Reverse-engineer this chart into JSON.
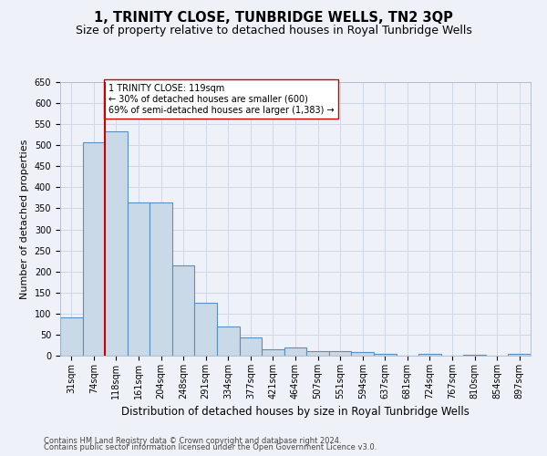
{
  "title": "1, TRINITY CLOSE, TUNBRIDGE WELLS, TN2 3QP",
  "subtitle": "Size of property relative to detached houses in Royal Tunbridge Wells",
  "xlabel": "Distribution of detached houses by size in Royal Tunbridge Wells",
  "ylabel": "Number of detached properties",
  "footnote1": "Contains HM Land Registry data © Crown copyright and database right 2024.",
  "footnote2": "Contains public sector information licensed under the Open Government Licence v3.0.",
  "bar_labels": [
    "31sqm",
    "74sqm",
    "118sqm",
    "161sqm",
    "204sqm",
    "248sqm",
    "291sqm",
    "334sqm",
    "377sqm",
    "421sqm",
    "464sqm",
    "507sqm",
    "551sqm",
    "594sqm",
    "637sqm",
    "681sqm",
    "724sqm",
    "767sqm",
    "810sqm",
    "854sqm",
    "897sqm"
  ],
  "bar_values": [
    92,
    507,
    533,
    363,
    363,
    214,
    125,
    70,
    43,
    15,
    19,
    10,
    11,
    8,
    5,
    0,
    5,
    0,
    3,
    0,
    4
  ],
  "bar_color": "#c9d9e8",
  "bar_edge_color": "#5a8fbf",
  "bar_linewidth": 0.8,
  "grid_color": "#d0d8e8",
  "background_color": "#eef2f8",
  "vline_color": "#cc0000",
  "vline_x": 1.5,
  "annotation_text": "1 TRINITY CLOSE: 119sqm\n← 30% of detached houses are smaller (600)\n69% of semi-detached houses are larger (1,383) →",
  "annotation_box_color": "#ffffff",
  "annotation_border_color": "#cc0000",
  "ylim": [
    0,
    650
  ],
  "yticks": [
    0,
    50,
    100,
    150,
    200,
    250,
    300,
    350,
    400,
    450,
    500,
    550,
    600,
    650
  ],
  "title_fontsize": 10.5,
  "subtitle_fontsize": 9,
  "xlabel_fontsize": 8.5,
  "ylabel_fontsize": 8,
  "tick_fontsize": 7,
  "annotation_fontsize": 7,
  "footnote_fontsize": 6
}
